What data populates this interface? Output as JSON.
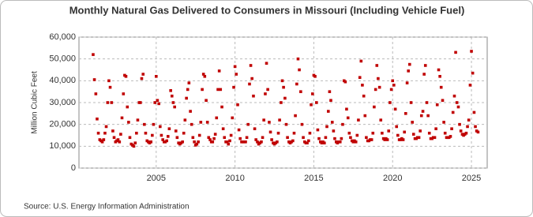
{
  "chart_data": {
    "type": "scatter",
    "title": "Monthly Natural Gas Delivered to Consumers in Missouri (Including Vehicle Fuel)",
    "y_label": "Million Cubic Feet",
    "source": "Source: U.S. Energy Information Administration",
    "xlim": [
      2000.1,
      2026
    ],
    "ylim": [
      0,
      60000
    ],
    "xticks": [
      2005,
      2010,
      2015,
      2020,
      2025
    ],
    "yticks": [
      0,
      {
        "value": 10000,
        "label": "10,000"
      },
      {
        "value": 20000,
        "label": "20,000"
      },
      {
        "value": 30000,
        "label": "30,000"
      },
      {
        "value": 40000,
        "label": "40,000"
      },
      {
        "value": 50000,
        "label": "50,000"
      },
      {
        "value": 60000,
        "label": "60,000"
      }
    ],
    "grid": true,
    "series": [
      {
        "color": "#c00000",
        "x": [
          2001,
          2001.08,
          2001.17,
          2001.25,
          2001.33,
          2001.42,
          2001.5,
          2001.58,
          2001.67,
          2001.75,
          2001.83,
          2001.92,
          2002,
          2002.08,
          2002.17,
          2002.25,
          2002.33,
          2002.42,
          2002.5,
          2002.58,
          2002.67,
          2002.75,
          2002.83,
          2002.92,
          2003,
          2003.08,
          2003.17,
          2003.25,
          2003.33,
          2003.42,
          2003.5,
          2003.58,
          2003.67,
          2003.75,
          2003.83,
          2003.92,
          2004,
          2004.08,
          2004.17,
          2004.25,
          2004.33,
          2004.42,
          2004.5,
          2004.58,
          2004.67,
          2004.75,
          2004.83,
          2004.92,
          2005,
          2005.08,
          2005.17,
          2005.25,
          2005.33,
          2005.42,
          2005.5,
          2005.58,
          2005.67,
          2005.75,
          2005.83,
          2005.92,
          2006,
          2006.08,
          2006.17,
          2006.25,
          2006.33,
          2006.42,
          2006.5,
          2006.58,
          2006.67,
          2006.75,
          2006.83,
          2006.92,
          2007,
          2007.08,
          2007.17,
          2007.25,
          2007.33,
          2007.42,
          2007.5,
          2007.58,
          2007.67,
          2007.75,
          2007.83,
          2007.92,
          2008,
          2008.08,
          2008.17,
          2008.25,
          2008.33,
          2008.42,
          2008.5,
          2008.58,
          2008.67,
          2008.75,
          2008.83,
          2008.92,
          2009,
          2009.08,
          2009.17,
          2009.25,
          2009.33,
          2009.42,
          2009.5,
          2009.58,
          2009.67,
          2009.75,
          2009.83,
          2009.92,
          2010,
          2010.08,
          2010.17,
          2010.25,
          2010.33,
          2010.42,
          2010.5,
          2010.58,
          2010.67,
          2010.75,
          2010.83,
          2010.92,
          2011,
          2011.08,
          2011.17,
          2011.25,
          2011.33,
          2011.42,
          2011.5,
          2011.58,
          2011.67,
          2011.75,
          2011.83,
          2011.92,
          2012,
          2012.08,
          2012.17,
          2012.25,
          2012.33,
          2012.42,
          2012.5,
          2012.58,
          2012.67,
          2012.75,
          2012.83,
          2012.92,
          2013,
          2013.08,
          2013.17,
          2013.25,
          2013.33,
          2013.42,
          2013.5,
          2013.58,
          2013.67,
          2013.75,
          2013.83,
          2013.92,
          2014,
          2014.08,
          2014.17,
          2014.25,
          2014.33,
          2014.42,
          2014.5,
          2014.58,
          2014.67,
          2014.75,
          2014.83,
          2014.92,
          2015,
          2015.08,
          2015.17,
          2015.25,
          2015.33,
          2015.42,
          2015.5,
          2015.58,
          2015.67,
          2015.75,
          2015.83,
          2015.92,
          2016,
          2016.08,
          2016.17,
          2016.25,
          2016.33,
          2016.42,
          2016.5,
          2016.58,
          2016.67,
          2016.75,
          2016.83,
          2016.92,
          2017,
          2017.08,
          2017.17,
          2017.25,
          2017.33,
          2017.42,
          2017.5,
          2017.58,
          2017.67,
          2017.75,
          2017.83,
          2017.92,
          2018,
          2018.08,
          2018.17,
          2018.25,
          2018.33,
          2018.42,
          2018.5,
          2018.58,
          2018.67,
          2018.75,
          2018.83,
          2018.92,
          2019,
          2019.08,
          2019.17,
          2019.25,
          2019.33,
          2019.42,
          2019.5,
          2019.58,
          2019.67,
          2019.75,
          2019.83,
          2019.92,
          2020,
          2020.08,
          2020.17,
          2020.25,
          2020.33,
          2020.42,
          2020.5,
          2020.58,
          2020.67,
          2020.75,
          2020.83,
          2020.92,
          2021,
          2021.08,
          2021.17,
          2021.25,
          2021.33,
          2021.42,
          2021.5,
          2021.58,
          2021.67,
          2021.75,
          2021.83,
          2021.92,
          2022,
          2022.08,
          2022.17,
          2022.25,
          2022.33,
          2022.42,
          2022.5,
          2022.58,
          2022.67,
          2022.75,
          2022.83,
          2022.92,
          2023,
          2023.08,
          2023.17,
          2023.25,
          2023.33,
          2023.42,
          2023.5,
          2023.58,
          2023.67,
          2023.75,
          2023.83,
          2023.92,
          2024,
          2024.08,
          2024.17,
          2024.25,
          2024.33,
          2024.42,
          2024.5,
          2024.58,
          2024.67,
          2024.75,
          2024.83,
          2024.92,
          2025,
          2025.08,
          2025.17,
          2025.25,
          2025.33,
          2025.42
        ],
        "values": [
          52000,
          40500,
          34000,
          22500,
          16000,
          13000,
          12500,
          12000,
          13000,
          16000,
          19000,
          30000,
          40000,
          37000,
          30000,
          17000,
          14000,
          12000,
          12500,
          13000,
          12000,
          15500,
          23000,
          34000,
          42500,
          42000,
          28000,
          21000,
          14000,
          11000,
          10500,
          10000,
          11500,
          16000,
          22000,
          30000,
          30000,
          41000,
          43000,
          20000,
          16000,
          12500,
          12000,
          11500,
          12000,
          15000,
          20000,
          30000,
          42000,
          31000,
          29500,
          19000,
          15000,
          13000,
          12000,
          12000,
          12500,
          14500,
          18000,
          35500,
          33000,
          30000,
          28000,
          17000,
          14000,
          11500,
          11000,
          11500,
          12000,
          16000,
          22000,
          32000,
          36000,
          39000,
          26000,
          20000,
          14000,
          12000,
          10500,
          11000,
          12000,
          15000,
          21000,
          36000,
          43000,
          42000,
          31000,
          21000,
          14000,
          13000,
          12000,
          12000,
          13500,
          15500,
          23000,
          36000,
          44500,
          36000,
          28000,
          18000,
          14000,
          12000,
          12000,
          11000,
          12500,
          15000,
          23000,
          37000,
          46500,
          43000,
          29000,
          17500,
          13500,
          12000,
          12000,
          12000,
          12000,
          14000,
          20000,
          38500,
          47000,
          41000,
          33000,
          18000,
          13000,
          12000,
          11000,
          11500,
          12000,
          14000,
          22000,
          34000,
          48000,
          36000,
          21000,
          16500,
          13000,
          11500,
          11000,
          11500,
          12000,
          16000,
          22000,
          30000,
          40000,
          37000,
          32000,
          20000,
          14000,
          12000,
          11500,
          12000,
          12500,
          16000,
          24000,
          38500,
          50000,
          45000,
          35000,
          20000,
          14000,
          12000,
          11500,
          11500,
          12500,
          16000,
          29000,
          34000,
          42500,
          42000,
          30000,
          17500,
          13500,
          12000,
          11500,
          12000,
          11500,
          14000,
          19000,
          26000,
          35000,
          31000,
          21000,
          17000,
          13500,
          12000,
          11500,
          12000,
          12000,
          13500,
          20000,
          40000,
          39500,
          27000,
          23000,
          16000,
          14000,
          12500,
          12000,
          12500,
          12000,
          15000,
          22000,
          41500,
          49000,
          38000,
          33000,
          24000,
          14000,
          12500,
          12500,
          13000,
          13000,
          16000,
          28000,
          36000,
          47000,
          41000,
          37000,
          22000,
          16000,
          13500,
          13000,
          13500,
          13000,
          17000,
          30000,
          36000,
          40000,
          38000,
          27000,
          19000,
          15000,
          13000,
          13000,
          13500,
          13000,
          16500,
          25000,
          39000,
          44500,
          47500,
          30000,
          21000,
          15500,
          13500,
          13500,
          14000,
          14000,
          17000,
          24000,
          26000,
          43000,
          47000,
          30000,
          24000,
          16000,
          13500,
          13500,
          14000,
          14000,
          18000,
          29000,
          45000,
          42000,
          37000,
          31000,
          21000,
          16000,
          14000,
          14000,
          14000,
          14500,
          18000,
          25500,
          33000,
          53000,
          30000,
          28000,
          20000,
          17000,
          15500,
          15000,
          15500,
          16000,
          19000,
          22000,
          38000,
          53500,
          43500,
          25500,
          19000,
          17000,
          16500
        ]
      }
    ]
  }
}
